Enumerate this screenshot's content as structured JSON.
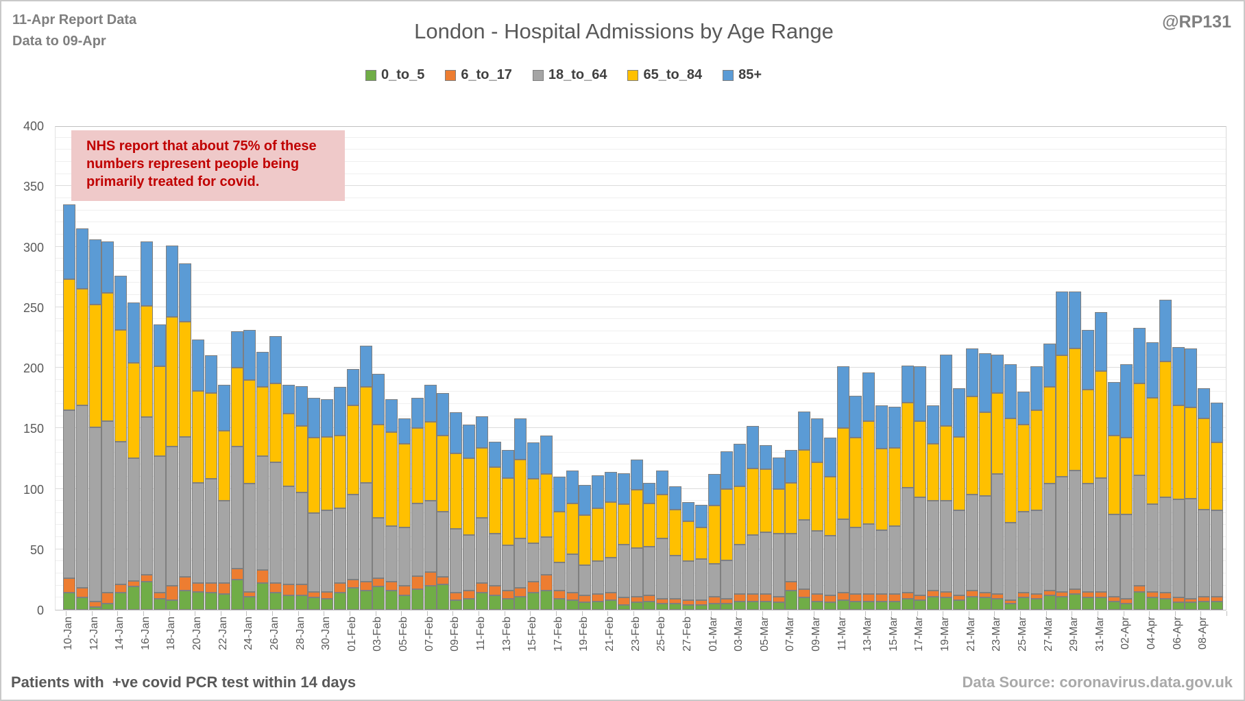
{
  "header": {
    "report_line1": "11-Apr Report Data",
    "report_line2": "Data to 09-Apr",
    "title": "London - Hospital Admissions by Age Range",
    "handle": "@RP131"
  },
  "annotation": {
    "line1": "NHS report that about 75% of these",
    "line2": "numbers represent people being",
    "line3": "primarily treated for covid.",
    "text_color": "#c00000",
    "bg_color": "#efc9c9"
  },
  "footer": {
    "left": "Patients with  +ve covid PCR test within 14 days",
    "right": "Data Source: coronavirus.data.gov.uk"
  },
  "chart_data": {
    "type": "bar",
    "stacked": true,
    "title": "London - Hospital Admissions by Age Range",
    "xlabel": "",
    "ylabel": "",
    "ylim": [
      0,
      400
    ],
    "ytick_step": 50,
    "minor_grid_step": 10,
    "grid": true,
    "legend_position": "top",
    "xlabel_every": 2,
    "categories": [
      "10-Jan",
      "11-Jan",
      "12-Jan",
      "13-Jan",
      "14-Jan",
      "15-Jan",
      "16-Jan",
      "17-Jan",
      "18-Jan",
      "19-Jan",
      "20-Jan",
      "21-Jan",
      "22-Jan",
      "23-Jan",
      "24-Jan",
      "25-Jan",
      "26-Jan",
      "27-Jan",
      "28-Jan",
      "29-Jan",
      "30-Jan",
      "31-Jan",
      "01-Feb",
      "02-Feb",
      "03-Feb",
      "04-Feb",
      "05-Feb",
      "06-Feb",
      "07-Feb",
      "08-Feb",
      "09-Feb",
      "10-Feb",
      "11-Feb",
      "12-Feb",
      "13-Feb",
      "14-Feb",
      "15-Feb",
      "16-Feb",
      "17-Feb",
      "18-Feb",
      "19-Feb",
      "20-Feb",
      "21-Feb",
      "22-Feb",
      "23-Feb",
      "24-Feb",
      "25-Feb",
      "26-Feb",
      "27-Feb",
      "28-Feb",
      "01-Mar",
      "02-Mar",
      "03-Mar",
      "04-Mar",
      "05-Mar",
      "06-Mar",
      "07-Mar",
      "08-Mar",
      "09-Mar",
      "10-Mar",
      "11-Mar",
      "12-Mar",
      "13-Mar",
      "14-Mar",
      "15-Mar",
      "16-Mar",
      "17-Mar",
      "18-Mar",
      "19-Mar",
      "20-Mar",
      "21-Mar",
      "22-Mar",
      "23-Mar",
      "24-Mar",
      "25-Mar",
      "26-Mar",
      "27-Mar",
      "28-Mar",
      "29-Mar",
      "30-Mar",
      "31-Mar",
      "01-Apr",
      "02-Apr",
      "03-Apr",
      "04-Apr",
      "05-Apr",
      "06-Apr",
      "07-Apr",
      "08-Apr",
      "09-Apr"
    ],
    "series": [
      {
        "name": "0_to_5",
        "color": "#70AD47",
        "values": [
          14,
          10,
          2,
          5,
          14,
          19,
          23,
          9,
          8,
          16,
          15,
          14,
          13,
          25,
          11,
          22,
          14,
          12,
          12,
          10,
          9,
          14,
          18,
          16,
          19,
          16,
          12,
          17,
          20,
          21,
          8,
          9,
          14,
          12,
          9,
          11,
          14,
          16,
          9,
          8,
          6,
          7,
          8,
          4,
          6,
          7,
          5,
          5,
          4,
          4,
          5,
          5,
          7,
          7,
          7,
          6,
          16,
          10,
          7,
          6,
          8,
          7,
          7,
          7,
          7,
          9,
          8,
          11,
          10,
          8,
          11,
          10,
          9,
          5,
          10,
          9,
          12,
          11,
          13,
          10,
          10,
          7,
          5,
          15,
          10,
          9,
          6,
          6,
          7,
          7
        ]
      },
      {
        "name": "6_to_17",
        "color": "#ED7D31",
        "values": [
          12,
          8,
          5,
          9,
          7,
          5,
          6,
          5,
          12,
          11,
          7,
          8,
          9,
          9,
          4,
          11,
          8,
          9,
          9,
          5,
          6,
          8,
          7,
          7,
          7,
          7,
          8,
          11,
          11,
          6,
          6,
          7,
          8,
          8,
          7,
          7,
          9,
          13,
          7,
          6,
          6,
          6,
          6,
          6,
          5,
          5,
          4,
          4,
          4,
          4,
          6,
          4,
          6,
          6,
          6,
          5,
          7,
          7,
          6,
          6,
          6,
          6,
          6,
          6,
          6,
          5,
          4,
          5,
          5,
          4,
          5,
          4,
          4,
          3,
          4,
          4,
          4,
          4,
          4,
          5,
          5,
          4,
          4,
          5,
          5,
          5,
          4,
          3,
          4,
          4
        ]
      },
      {
        "name": "18_to_64",
        "color": "#A5A5A5",
        "values": [
          139,
          151,
          144,
          142,
          118,
          101,
          130,
          113,
          115,
          116,
          83,
          86,
          68,
          101,
          89,
          94,
          100,
          81,
          76,
          65,
          67,
          62,
          70,
          82,
          50,
          46,
          48,
          60,
          59,
          54,
          53,
          46,
          54,
          43,
          37,
          41,
          32,
          31,
          23,
          32,
          25,
          27,
          29,
          44,
          40,
          40,
          50,
          36,
          32,
          34,
          27,
          32,
          41,
          49,
          51,
          52,
          40,
          57,
          52,
          49,
          61,
          55,
          58,
          53,
          56,
          87,
          81,
          74,
          75,
          70,
          79,
          80,
          99,
          64,
          67,
          69,
          88,
          95,
          98,
          89,
          94,
          68,
          70,
          91,
          72,
          79,
          81,
          83,
          72,
          71
        ]
      },
      {
        "name": "65_to_84",
        "color": "#FFC000",
        "values": [
          108,
          96,
          101,
          106,
          92,
          79,
          92,
          74,
          107,
          95,
          76,
          71,
          58,
          65,
          86,
          57,
          65,
          60,
          55,
          62,
          61,
          60,
          74,
          79,
          77,
          78,
          69,
          62,
          65,
          63,
          62,
          63,
          58,
          55,
          56,
          65,
          53,
          52,
          42,
          42,
          41,
          44,
          46,
          33,
          48,
          36,
          36,
          38,
          33,
          26,
          48,
          59,
          48,
          55,
          52,
          37,
          42,
          58,
          57,
          49,
          75,
          74,
          85,
          67,
          65,
          70,
          63,
          47,
          62,
          61,
          81,
          69,
          67,
          86,
          72,
          83,
          80,
          100,
          101,
          78,
          88,
          65,
          63,
          76,
          88,
          112,
          78,
          75,
          75,
          56
        ]
      },
      {
        "name": "85+",
        "color": "#5B9BD5",
        "values": [
          62,
          50,
          54,
          42,
          45,
          50,
          53,
          35,
          59,
          48,
          42,
          31,
          38,
          30,
          41,
          29,
          39,
          24,
          33,
          33,
          31,
          40,
          30,
          34,
          42,
          27,
          21,
          25,
          31,
          35,
          34,
          28,
          26,
          21,
          23,
          34,
          30,
          32,
          29,
          27,
          25,
          27,
          25,
          26,
          25,
          17,
          20,
          19,
          16,
          19,
          26,
          31,
          35,
          35,
          20,
          26,
          27,
          32,
          36,
          32,
          51,
          35,
          40,
          36,
          34,
          31,
          45,
          32,
          59,
          40,
          40,
          49,
          32,
          45,
          27,
          36,
          36,
          53,
          47,
          49,
          49,
          44,
          61,
          46,
          46,
          51,
          48,
          49,
          25,
          33
        ]
      }
    ]
  }
}
